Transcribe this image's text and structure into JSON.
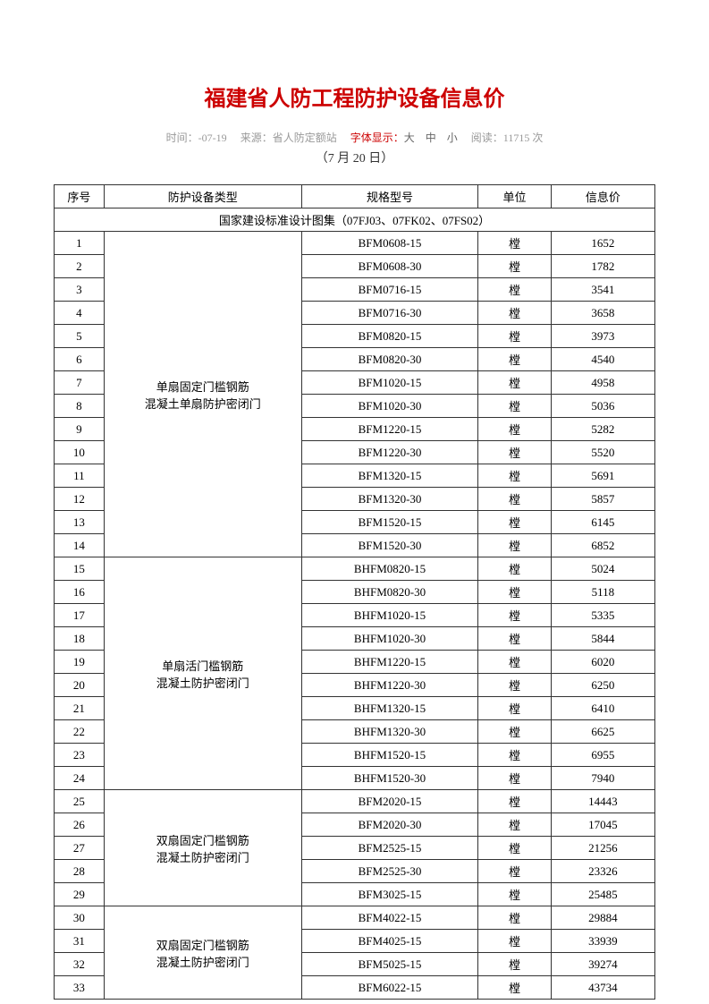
{
  "title": "福建省人防工程防护设备信息价",
  "meta": {
    "time_label": "时间：-07-19",
    "source_label": "来源：省人防定额站",
    "font_label": "字体显示：",
    "font_sizes": "大　中　小",
    "read_label": "阅读：11715 次"
  },
  "subtitle": "（7 月 20 日）",
  "headers": {
    "seq": "序号",
    "type": "防护设备类型",
    "spec": "规格型号",
    "unit": "单位",
    "price": "信息价"
  },
  "section_header": "国家建设标准设计图集（07FJ03、07FK02、07FS02）",
  "groups": [
    {
      "type_lines": [
        "单扇固定门槛钢筋",
        "混凝土单扇防护密闭门"
      ],
      "rows": [
        {
          "seq": "1",
          "spec": "BFM0608-15",
          "unit": "樘",
          "price": "1652"
        },
        {
          "seq": "2",
          "spec": "BFM0608-30",
          "unit": "樘",
          "price": "1782"
        },
        {
          "seq": "3",
          "spec": "BFM0716-15",
          "unit": "樘",
          "price": "3541"
        },
        {
          "seq": "4",
          "spec": "BFM0716-30",
          "unit": "樘",
          "price": "3658"
        },
        {
          "seq": "5",
          "spec": "BFM0820-15",
          "unit": "樘",
          "price": "3973"
        },
        {
          "seq": "6",
          "spec": "BFM0820-30",
          "unit": "樘",
          "price": "4540"
        },
        {
          "seq": "7",
          "spec": "BFM1020-15",
          "unit": "樘",
          "price": "4958"
        },
        {
          "seq": "8",
          "spec": "BFM1020-30",
          "unit": "樘",
          "price": "5036"
        },
        {
          "seq": "9",
          "spec": "BFM1220-15",
          "unit": "樘",
          "price": "5282"
        },
        {
          "seq": "10",
          "spec": "BFM1220-30",
          "unit": "樘",
          "price": "5520"
        },
        {
          "seq": "11",
          "spec": "BFM1320-15",
          "unit": "樘",
          "price": "5691"
        },
        {
          "seq": "12",
          "spec": "BFM1320-30",
          "unit": "樘",
          "price": "5857"
        },
        {
          "seq": "13",
          "spec": "BFM1520-15",
          "unit": "樘",
          "price": "6145"
        },
        {
          "seq": "14",
          "spec": "BFM1520-30",
          "unit": "樘",
          "price": "6852"
        }
      ]
    },
    {
      "type_lines": [
        "单扇活门槛钢筋",
        "混凝土防护密闭门"
      ],
      "rows": [
        {
          "seq": "15",
          "spec": "BHFM0820-15",
          "unit": "樘",
          "price": "5024"
        },
        {
          "seq": "16",
          "spec": "BHFM0820-30",
          "unit": "樘",
          "price": "5118"
        },
        {
          "seq": "17",
          "spec": "BHFM1020-15",
          "unit": "樘",
          "price": "5335"
        },
        {
          "seq": "18",
          "spec": "BHFM1020-30",
          "unit": "樘",
          "price": "5844"
        },
        {
          "seq": "19",
          "spec": "BHFM1220-15",
          "unit": "樘",
          "price": "6020"
        },
        {
          "seq": "20",
          "spec": "BHFM1220-30",
          "unit": "樘",
          "price": "6250"
        },
        {
          "seq": "21",
          "spec": "BHFM1320-15",
          "unit": "樘",
          "price": "6410"
        },
        {
          "seq": "22",
          "spec": "BHFM1320-30",
          "unit": "樘",
          "price": "6625"
        },
        {
          "seq": "23",
          "spec": "BHFM1520-15",
          "unit": "樘",
          "price": "6955"
        },
        {
          "seq": "24",
          "spec": "BHFM1520-30",
          "unit": "樘",
          "price": "7940"
        }
      ]
    },
    {
      "type_lines": [
        "双扇固定门槛钢筋",
        "混凝土防护密闭门"
      ],
      "rows": [
        {
          "seq": "25",
          "spec": "BFM2020-15",
          "unit": "樘",
          "price": "14443"
        },
        {
          "seq": "26",
          "spec": "BFM2020-30",
          "unit": "樘",
          "price": "17045"
        },
        {
          "seq": "27",
          "spec": "BFM2525-15",
          "unit": "樘",
          "price": "21256"
        },
        {
          "seq": "28",
          "spec": "BFM2525-30",
          "unit": "樘",
          "price": "23326"
        },
        {
          "seq": "29",
          "spec": "BFM3025-15",
          "unit": "樘",
          "price": "25485"
        }
      ]
    },
    {
      "type_lines": [
        "双扇固定门槛钢筋",
        "混凝土防护密闭门"
      ],
      "rows": [
        {
          "seq": "30",
          "spec": "BFM4022-15",
          "unit": "樘",
          "price": "29884"
        },
        {
          "seq": "31",
          "spec": "BFM4025-15",
          "unit": "樘",
          "price": "33939"
        },
        {
          "seq": "32",
          "spec": "BFM5025-15",
          "unit": "樘",
          "price": "39274"
        },
        {
          "seq": "33",
          "spec": "BFM6022-15",
          "unit": "樘",
          "price": "43734"
        }
      ]
    }
  ]
}
